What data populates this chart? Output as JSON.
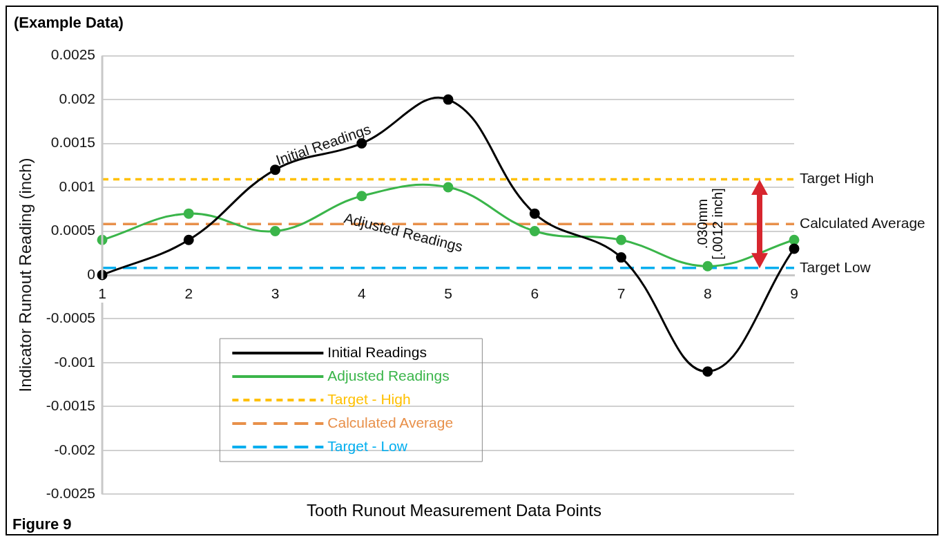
{
  "chart_data": {
    "type": "line",
    "title": "(Example Data)",
    "xlabel": "Tooth Runout Measurement Data Points",
    "ylabel": "Indicator Runout Reading (inch)",
    "categories": [
      "1",
      "2",
      "3",
      "4",
      "5",
      "6",
      "7",
      "8",
      "9"
    ],
    "series": [
      {
        "name": "Initial Readings",
        "color": "#000000",
        "marker": "circle",
        "line_style": "solid",
        "values": [
          0,
          0.0004,
          0.0012,
          0.0015,
          0.002,
          0.0007,
          0.0002,
          -0.0011,
          0.0003
        ]
      },
      {
        "name": "Adjusted Readings",
        "color": "#3ab54a",
        "marker": "circle",
        "line_style": "solid",
        "values": [
          0.0004,
          0.0007,
          0.0005,
          0.0009,
          0.001,
          0.0005,
          0.0004,
          0.0001,
          0.0004
        ]
      },
      {
        "name": "Target - High",
        "color": "#ffc000",
        "marker": "none",
        "line_style": "dotted",
        "values": [
          0.00109,
          0.00109,
          0.00109,
          0.00109,
          0.00109,
          0.00109,
          0.00109,
          0.00109,
          0.00109
        ]
      },
      {
        "name": "Calculated Average",
        "color": "#e8904a",
        "marker": "none",
        "line_style": "dashed",
        "values": [
          0.00058,
          0.00058,
          0.00058,
          0.00058,
          0.00058,
          0.00058,
          0.00058,
          0.00058,
          0.00058
        ]
      },
      {
        "name": "Target - Low",
        "color": "#00aeef",
        "marker": "none",
        "line_style": "dashed",
        "values": [
          8e-05,
          8e-05,
          8e-05,
          8e-05,
          8e-05,
          8e-05,
          8e-05,
          8e-05,
          8e-05
        ]
      }
    ],
    "ylim": [
      -0.0025,
      0.0025
    ],
    "yticks": [
      -0.0025,
      -0.002,
      -0.0015,
      -0.001,
      -0.0005,
      0,
      0.0005,
      0.001,
      0.0015,
      0.002,
      0.0025
    ],
    "grid": "y",
    "legend": "bottom left",
    "annotations": [
      {
        "text": "Target High",
        "x": "9",
        "y": 0.00109
      },
      {
        "text": "Calculated Average",
        "x": "9",
        "y": 0.00058
      },
      {
        "text": "Target Low",
        "x": "9",
        "y": 8e-05
      },
      "Initial Readings",
      "Adjusted Readings",
      ".030mm [.0012 inch]",
      "Figure 9"
    ]
  }
}
